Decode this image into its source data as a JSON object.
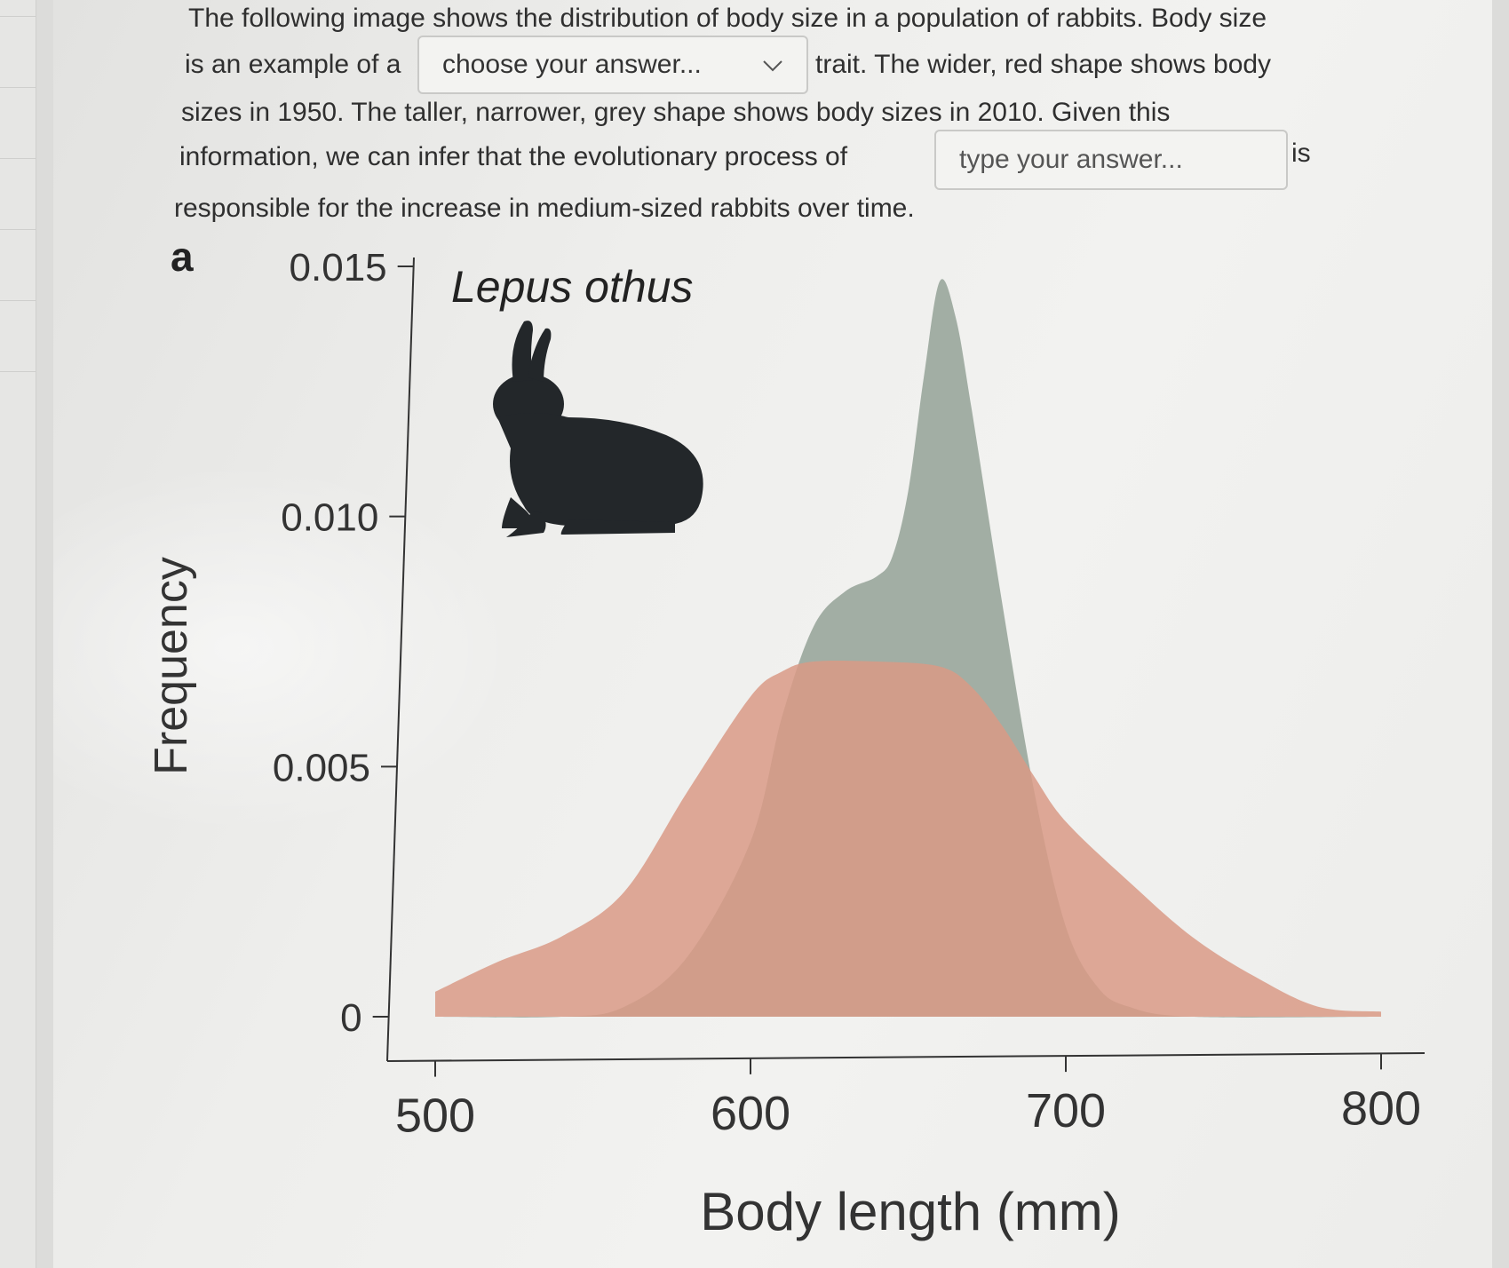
{
  "question": {
    "line1": "The following image shows the distribution of body size in a population of rabbits. Body size",
    "line2_before": "is an example of a",
    "dropdown_placeholder": "choose your answer...",
    "line2_after": "trait. The wider, red shape shows body",
    "line3": "sizes in 1950. The taller, narrower, grey shape shows body sizes in 2010. Given this",
    "line4_before": "information, we can infer that the evolutionary process of",
    "textbox_placeholder": "type your answer...",
    "line4_after": "is",
    "line5": "responsible for the increase in medium-sized rabbits over time."
  },
  "figure": {
    "panel_letter": "a",
    "species": "Lepus othus"
  },
  "chart_data": {
    "type": "area",
    "title": "Lepus othus",
    "xlabel": "Body length (mm)",
    "ylabel": "Frequency",
    "xlim": [
      500,
      800
    ],
    "ylim": [
      0,
      0.015
    ],
    "x_ticks": [
      "500",
      "600",
      "700",
      "800"
    ],
    "y_ticks": [
      "0",
      "0.005",
      "0.010",
      "0.015"
    ],
    "grid": false,
    "series": [
      {
        "color": "#9daa9f",
        "x": [
          500,
          540,
          560,
          580,
          600,
          610,
          620,
          630,
          640,
          645,
          650,
          655,
          660,
          665,
          670,
          680,
          690,
          700,
          710,
          720,
          740,
          800
        ],
        "y": [
          0,
          0,
          0.0002,
          0.0012,
          0.0035,
          0.006,
          0.0078,
          0.0085,
          0.0088,
          0.0092,
          0.0105,
          0.0128,
          0.0147,
          0.014,
          0.0122,
          0.0082,
          0.0045,
          0.0018,
          0.0006,
          0.0002,
          0,
          0
        ]
      },
      {
        "color": "#d99a86",
        "x": [
          500,
          520,
          540,
          560,
          580,
          600,
          610,
          620,
          640,
          660,
          670,
          680,
          690,
          700,
          720,
          740,
          760,
          780,
          800
        ],
        "y": [
          0.0005,
          0.0011,
          0.0016,
          0.0025,
          0.0045,
          0.0064,
          0.0069,
          0.0071,
          0.0071,
          0.007,
          0.0066,
          0.0058,
          0.0048,
          0.0039,
          0.0027,
          0.0016,
          0.0008,
          0.0002,
          0.0001
        ]
      }
    ]
  }
}
